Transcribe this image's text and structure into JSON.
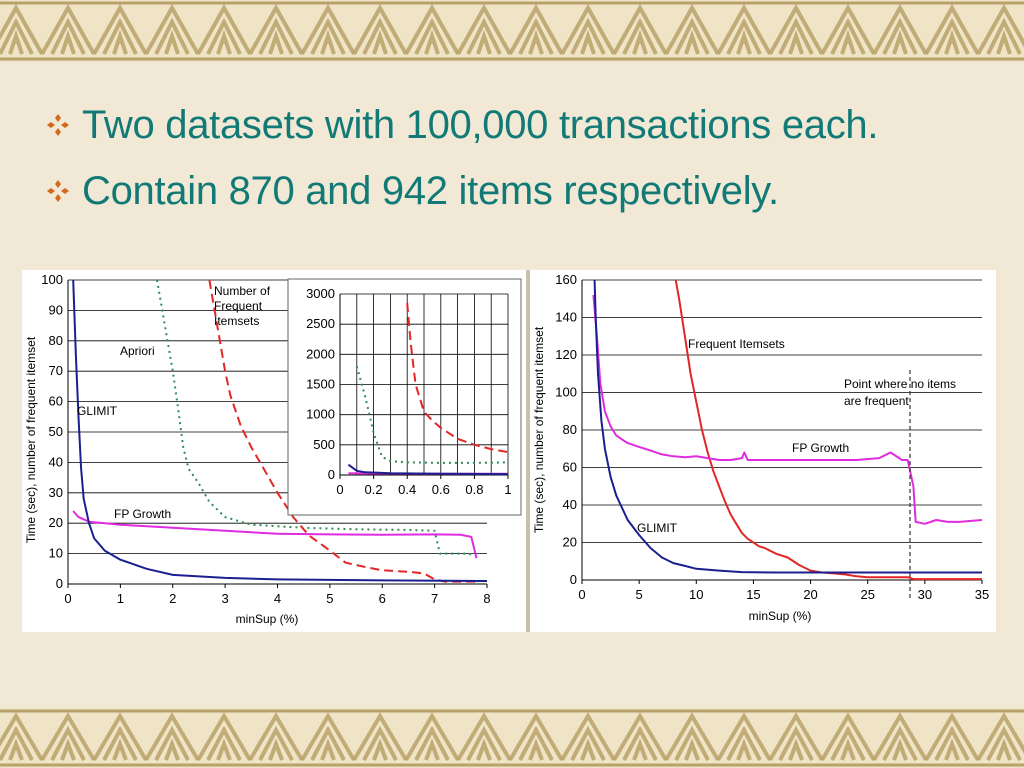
{
  "slide": {
    "bullets": [
      "Two datasets with 100,000 transactions each.",
      "Contain 870 and 942 items respectively."
    ],
    "bullet_icon": "diamond-bullet-icon",
    "colors": {
      "text": "#127a76",
      "bullet": "#d2691e",
      "background": "#f1e9d5",
      "border_pattern": "#b8a26a"
    }
  },
  "chart_data": [
    {
      "type": "line",
      "xlabel": "minSup (%)",
      "ylabel": "Time (sec), number of frequent itemset",
      "xlim": [
        0,
        8
      ],
      "ylim": [
        0,
        100
      ],
      "xticks": [
        0,
        1,
        2,
        3,
        4,
        5,
        6,
        7,
        8
      ],
      "yticks": [
        0,
        10,
        20,
        30,
        40,
        50,
        60,
        70,
        80,
        90,
        100
      ],
      "grid": "horizontal",
      "series": [
        {
          "name": "Apriori",
          "color": "#2e8b57",
          "dash": "dotted",
          "points": [
            [
              1.7,
              100
            ],
            [
              1.8,
              90
            ],
            [
              1.9,
              80
            ],
            [
              2.0,
              70
            ],
            [
              2.1,
              58
            ],
            [
              2.2,
              45
            ],
            [
              2.3,
              38
            ],
            [
              2.5,
              33
            ],
            [
              2.7,
              27
            ],
            [
              3.0,
              22
            ],
            [
              3.5,
              19.5
            ],
            [
              4.5,
              18.5
            ],
            [
              5.5,
              18
            ],
            [
              6.5,
              17.8
            ],
            [
              7.0,
              17.5
            ],
            [
              7.1,
              10
            ],
            [
              7.6,
              10
            ],
            [
              7.8,
              9.5
            ]
          ]
        },
        {
          "name": "Number of Frequent Itemsets",
          "color": "#e32626",
          "dash": "dashed",
          "points": [
            [
              2.7,
              100
            ],
            [
              2.8,
              90
            ],
            [
              2.9,
              80
            ],
            [
              3.0,
              70
            ],
            [
              3.1,
              62
            ],
            [
              3.3,
              52
            ],
            [
              3.5,
              45
            ],
            [
              3.7,
              39
            ],
            [
              4.0,
              30
            ],
            [
              4.3,
              22
            ],
            [
              4.6,
              16
            ],
            [
              5.0,
              11
            ],
            [
              5.3,
              7
            ],
            [
              5.7,
              5.5
            ],
            [
              6.0,
              4.5
            ],
            [
              6.5,
              4
            ],
            [
              6.8,
              3.5
            ],
            [
              7.0,
              1.5
            ],
            [
              7.2,
              0.8
            ],
            [
              7.8,
              0.8
            ]
          ]
        },
        {
          "name": "FP Growth",
          "color": "#e02be0",
          "dash": "solid",
          "points": [
            [
              0.1,
              24
            ],
            [
              0.2,
              22
            ],
            [
              0.4,
              20.5
            ],
            [
              1,
              19.5
            ],
            [
              2,
              18.5
            ],
            [
              3,
              17.5
            ],
            [
              3.5,
              17
            ],
            [
              4,
              16.5
            ],
            [
              5,
              16.3
            ],
            [
              6,
              16.2
            ],
            [
              7,
              16.3
            ],
            [
              7.5,
              16.2
            ],
            [
              7.7,
              15.5
            ],
            [
              7.8,
              8.5
            ]
          ]
        },
        {
          "name": "GLIMIT",
          "color": "#1c1f8f",
          "dash": "solid",
          "points": [
            [
              0.1,
              100
            ],
            [
              0.15,
              75
            ],
            [
              0.2,
              55
            ],
            [
              0.25,
              38
            ],
            [
              0.3,
              28
            ],
            [
              0.4,
              20
            ],
            [
              0.5,
              15
            ],
            [
              0.7,
              11
            ],
            [
              1,
              8
            ],
            [
              1.5,
              5
            ],
            [
              2,
              3
            ],
            [
              3,
              2
            ],
            [
              4,
              1.5
            ],
            [
              6,
              1.2
            ],
            [
              8,
              1
            ]
          ]
        }
      ],
      "annotations": [
        "Apriori",
        "GLIMIT",
        "FP Growth",
        "Number of Frequent Itemsets"
      ],
      "inset": {
        "xlim": [
          0,
          1
        ],
        "ylim": [
          0,
          3000
        ],
        "xticks": [
          0,
          0.2,
          0.4,
          0.6,
          0.8,
          1
        ],
        "xtick_labels": [
          "0",
          "0.2",
          "0.4",
          "0.6",
          "0.8",
          "1"
        ],
        "yticks": [
          0,
          500,
          1000,
          1500,
          2000,
          2500,
          3000
        ],
        "grid": "both",
        "series": [
          {
            "name": "Number of Frequent Itemsets",
            "color": "#e32626",
            "dash": "dashed",
            "points": [
              [
                0.4,
                2850
              ],
              [
                0.42,
                2200
              ],
              [
                0.45,
                1500
              ],
              [
                0.5,
                1050
              ],
              [
                0.55,
                900
              ],
              [
                0.6,
                780
              ],
              [
                0.7,
                600
              ],
              [
                0.8,
                500
              ],
              [
                0.9,
                430
              ],
              [
                1,
                380
              ]
            ]
          },
          {
            "name": "Apriori",
            "color": "#2e8b57",
            "dash": "dotted",
            "points": [
              [
                0.1,
                1800
              ],
              [
                0.15,
                1300
              ],
              [
                0.2,
                700
              ],
              [
                0.25,
                300
              ],
              [
                0.3,
                230
              ],
              [
                0.4,
                210
              ],
              [
                0.6,
                200
              ],
              [
                0.8,
                200
              ],
              [
                1,
                210
              ]
            ]
          },
          {
            "name": "FP Growth",
            "color": "#e02be0",
            "dash": "solid",
            "points": [
              [
                0.05,
                30
              ],
              [
                0.2,
                25
              ],
              [
                0.5,
                22
              ],
              [
                1,
                20
              ]
            ]
          },
          {
            "name": "GLIMIT",
            "color": "#1c1f8f",
            "dash": "solid",
            "points": [
              [
                0.05,
                170
              ],
              [
                0.1,
                70
              ],
              [
                0.15,
                45
              ],
              [
                0.3,
                30
              ],
              [
                0.6,
                20
              ],
              [
                1,
                15
              ]
            ]
          }
        ]
      }
    },
    {
      "type": "line",
      "xlabel": "minSup (%)",
      "ylabel": "Time (sec), number of frequent itemset",
      "xlim": [
        0,
        35
      ],
      "ylim": [
        0,
        160
      ],
      "xticks": [
        0,
        5,
        10,
        15,
        20,
        25,
        30,
        35
      ],
      "yticks": [
        0,
        20,
        40,
        60,
        80,
        100,
        120,
        140,
        160
      ],
      "grid": "horizontal",
      "series": [
        {
          "name": "Frequent Itemsets",
          "color": "#e32626",
          "dash": "solid",
          "points": [
            [
              8.2,
              160
            ],
            [
              8.5,
              150
            ],
            [
              9,
              130
            ],
            [
              9.5,
              110
            ],
            [
              10,
              95
            ],
            [
              10.5,
              80
            ],
            [
              11,
              68
            ],
            [
              11.5,
              58
            ],
            [
              12,
              50
            ],
            [
              12.5,
              42
            ],
            [
              13,
              35
            ],
            [
              13.5,
              30
            ],
            [
              14,
              25
            ],
            [
              14.5,
              22
            ],
            [
              15,
              20
            ],
            [
              15.5,
              18
            ],
            [
              16,
              17
            ],
            [
              17,
              14
            ],
            [
              18,
              12
            ],
            [
              19,
              8
            ],
            [
              20,
              5
            ],
            [
              21,
              4
            ],
            [
              22,
              3.5
            ],
            [
              23,
              3
            ],
            [
              24,
              2
            ],
            [
              25,
              1.5
            ],
            [
              28.5,
              1.5
            ],
            [
              29,
              0.5
            ],
            [
              35,
              0.5
            ]
          ]
        },
        {
          "name": "FP Growth",
          "color": "#e02be0",
          "dash": "solid",
          "points": [
            [
              1,
              152
            ],
            [
              1.3,
              130
            ],
            [
              1.6,
              105
            ],
            [
              2,
              90
            ],
            [
              2.5,
              82
            ],
            [
              3,
              77
            ],
            [
              3.5,
              75
            ],
            [
              4,
              73
            ],
            [
              5,
              71
            ],
            [
              6,
              69
            ],
            [
              7,
              67
            ],
            [
              8,
              66
            ],
            [
              9,
              65.5
            ],
            [
              10,
              66
            ],
            [
              11,
              65
            ],
            [
              12,
              64
            ],
            [
              13,
              64
            ],
            [
              14,
              65
            ],
            [
              14.2,
              68
            ],
            [
              14.5,
              64
            ],
            [
              16,
              64
            ],
            [
              18,
              64
            ],
            [
              20,
              64
            ],
            [
              22,
              64
            ],
            [
              24,
              64
            ],
            [
              26,
              65
            ],
            [
              27,
              68
            ],
            [
              28,
              64
            ],
            [
              28.5,
              64
            ],
            [
              29,
              50
            ],
            [
              29.2,
              31
            ],
            [
              30,
              30
            ],
            [
              31,
              32
            ],
            [
              32,
              31
            ],
            [
              33,
              31
            ],
            [
              35,
              32
            ]
          ]
        },
        {
          "name": "GLIMIT",
          "color": "#1c1f8f",
          "dash": "solid",
          "points": [
            [
              1.1,
              160
            ],
            [
              1.2,
              140
            ],
            [
              1.4,
              110
            ],
            [
              1.7,
              85
            ],
            [
              2,
              70
            ],
            [
              2.5,
              55
            ],
            [
              3,
              45
            ],
            [
              4,
              32
            ],
            [
              5,
              24
            ],
            [
              6,
              17
            ],
            [
              7,
              12
            ],
            [
              8,
              9
            ],
            [
              9,
              7.5
            ],
            [
              10,
              6
            ],
            [
              12,
              5
            ],
            [
              14,
              4.2
            ],
            [
              17,
              4
            ],
            [
              20,
              4
            ],
            [
              25,
              4
            ],
            [
              30,
              4
            ],
            [
              35,
              4
            ]
          ]
        }
      ],
      "vline": {
        "x": 28.7,
        "label": "Point where no items are frequent"
      },
      "annotations": [
        "Frequent Itemsets",
        "FP Growth",
        "GLIMIT",
        "Point where no items are frequent"
      ]
    }
  ]
}
